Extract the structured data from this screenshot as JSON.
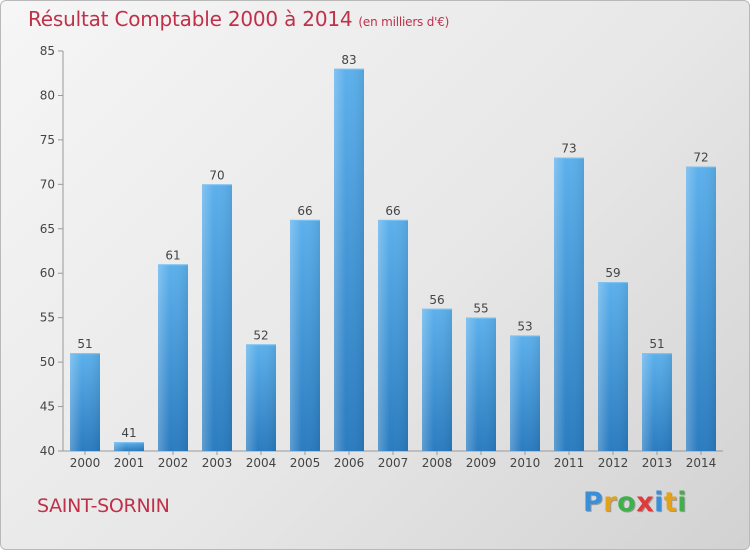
{
  "header": {
    "title": "Résultat Comptable 2000 à 2014",
    "subtitle": "(en milliers d'€)"
  },
  "footer": {
    "town": "SAINT-SORNIN",
    "brand": {
      "letters": [
        "P",
        "r",
        "o",
        "x",
        "i",
        "t",
        "i"
      ],
      "colors": [
        "#3a8fd8",
        "#e3a21a",
        "#3fb04a",
        "#e03a3a",
        "#3a8fd8",
        "#e3a21a",
        "#3fb04a"
      ]
    }
  },
  "chart_data": {
    "type": "bar",
    "categories": [
      "2000",
      "2001",
      "2002",
      "2003",
      "2004",
      "2005",
      "2006",
      "2007",
      "2008",
      "2009",
      "2010",
      "2011",
      "2012",
      "2013",
      "2014"
    ],
    "values": [
      51,
      41,
      61,
      70,
      52,
      66,
      83,
      66,
      56,
      55,
      53,
      73,
      59,
      51,
      72
    ],
    "ylim": [
      40,
      85
    ],
    "yticks": [
      40,
      45,
      50,
      55,
      60,
      65,
      70,
      75,
      80,
      85
    ],
    "grid": false,
    "bar_color": "#3c95d8"
  }
}
